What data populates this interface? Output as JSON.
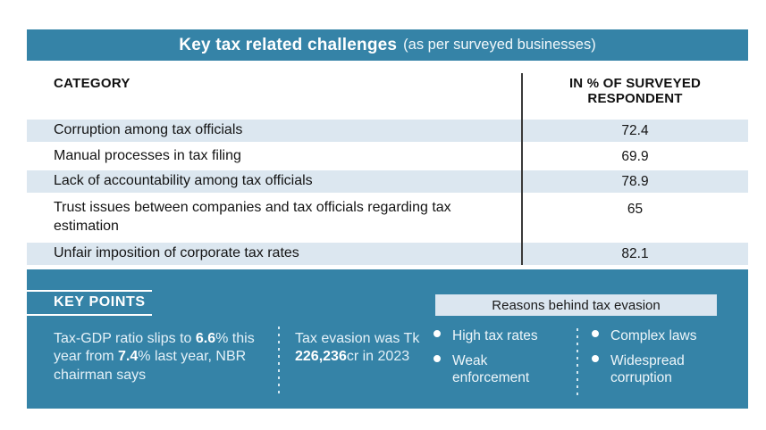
{
  "header": {
    "title": "Key tax related challenges",
    "subtitle": "(as per surveyed businesses)"
  },
  "table": {
    "col1_header": "CATEGORY",
    "col2_header": "IN % OF SURVEYED\nRESPONDENT",
    "rows": [
      {
        "category": "Corruption among tax officials",
        "value": "72.4"
      },
      {
        "category": "Manual processes in tax filing",
        "value": "69.9"
      },
      {
        "category": "Lack of accountability among tax officials",
        "value": "78.9"
      },
      {
        "category": "Trust issues between companies and tax officials regarding tax estimation",
        "value": "65"
      },
      {
        "category": "Unfair imposition of corporate tax rates",
        "value": "82.1"
      }
    ]
  },
  "key_points": {
    "heading": "KEY POINTS",
    "point1": {
      "a": "Tax-GDP ratio slips to ",
      "b": "6.6",
      "c": "% this year from ",
      "d": "7.4",
      "e": "% last year, NBR chairman says"
    },
    "point2": {
      "a": "Tax evasion was Tk ",
      "b": "226,236",
      "c": "cr in 2023"
    }
  },
  "reasons": {
    "box_label": "Reasons behind tax evasion",
    "items": [
      "High tax rates",
      "Weak enforcement",
      "Complex laws",
      "Widespread corruption"
    ]
  },
  "colors": {
    "teal": "#3583a7",
    "row_highlight": "#dce7f0",
    "reasons_box": "#dbe6f0",
    "divider_dark": "#3a3a3a",
    "text_dark": "#141414",
    "text_light": "#e4f1f8"
  },
  "chart_data": {
    "type": "table",
    "title": "Key tax related challenges (as per surveyed businesses)",
    "columns": [
      "CATEGORY",
      "IN % OF SURVEYED RESPONDENT"
    ],
    "categories": [
      "Corruption among tax officials",
      "Manual processes in tax filing",
      "Lack of accountability among tax officials",
      "Trust issues between companies and tax officials regarding tax estimation",
      "Unfair imposition of corporate tax rates"
    ],
    "values": [
      72.4,
      69.9,
      78.9,
      65,
      82.1
    ],
    "annotations": [
      "KEY POINTS",
      "Tax-GDP ratio slips to 6.6% this year from 7.4% last year, NBR chairman says",
      "Tax evasion was Tk 226,236cr in 2023",
      "Reasons behind tax evasion: High tax rates, Weak enforcement, Complex laws, Widespread corruption"
    ]
  }
}
